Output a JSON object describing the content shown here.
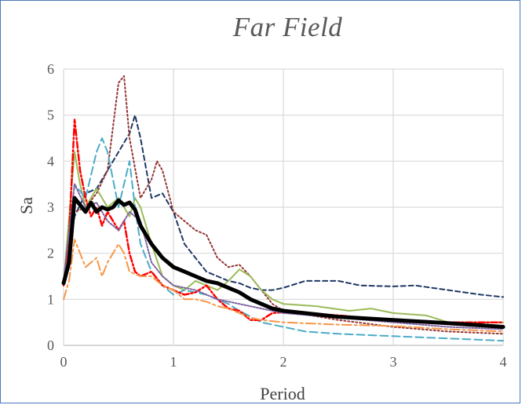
{
  "chart_data": {
    "type": "line",
    "title": "Far Field",
    "xlabel": "Period",
    "ylabel": "Sa",
    "xlim": [
      0,
      4
    ],
    "ylim": [
      0,
      6
    ],
    "xticks": [
      "0",
      "1",
      "2",
      "3",
      "4"
    ],
    "yticks": [
      "0",
      "1",
      "2",
      "3",
      "4",
      "5",
      "6"
    ],
    "grid": true,
    "legend": "none",
    "series": [
      {
        "color": "#000000",
        "dash": "solid",
        "width": 5,
        "points": [
          [
            0,
            1.35
          ],
          [
            0.05,
            1.8
          ],
          [
            0.1,
            3.2
          ],
          [
            0.15,
            3.05
          ],
          [
            0.2,
            2.9
          ],
          [
            0.25,
            3.1
          ],
          [
            0.3,
            2.9
          ],
          [
            0.35,
            3.0
          ],
          [
            0.4,
            2.95
          ],
          [
            0.45,
            3.0
          ],
          [
            0.5,
            3.15
          ],
          [
            0.55,
            3.05
          ],
          [
            0.6,
            3.1
          ],
          [
            0.65,
            2.95
          ],
          [
            0.7,
            2.6
          ],
          [
            0.8,
            2.2
          ],
          [
            0.9,
            1.9
          ],
          [
            1.0,
            1.7
          ],
          [
            1.1,
            1.6
          ],
          [
            1.2,
            1.5
          ],
          [
            1.3,
            1.4
          ],
          [
            1.4,
            1.35
          ],
          [
            1.5,
            1.25
          ],
          [
            1.6,
            1.15
          ],
          [
            1.7,
            1.0
          ],
          [
            1.8,
            0.9
          ],
          [
            1.9,
            0.8
          ],
          [
            2.0,
            0.75
          ],
          [
            2.5,
            0.62
          ],
          [
            3.0,
            0.55
          ],
          [
            3.5,
            0.48
          ],
          [
            4.0,
            0.4
          ]
        ]
      },
      {
        "color": "#1f3864",
        "dash": "6,4",
        "width": 2,
        "points": [
          [
            0,
            1.4
          ],
          [
            0.1,
            2.8
          ],
          [
            0.2,
            3.3
          ],
          [
            0.3,
            3.4
          ],
          [
            0.4,
            3.8
          ],
          [
            0.5,
            4.2
          ],
          [
            0.6,
            4.6
          ],
          [
            0.65,
            5.0
          ],
          [
            0.7,
            4.5
          ],
          [
            0.8,
            3.2
          ],
          [
            0.9,
            3.3
          ],
          [
            1.0,
            2.9
          ],
          [
            1.1,
            2.2
          ],
          [
            1.2,
            1.9
          ],
          [
            1.3,
            1.6
          ],
          [
            1.4,
            1.5
          ],
          [
            1.5,
            1.4
          ],
          [
            1.6,
            1.35
          ],
          [
            1.7,
            1.25
          ],
          [
            1.8,
            1.2
          ],
          [
            1.9,
            1.2
          ],
          [
            2.0,
            1.25
          ],
          [
            2.2,
            1.4
          ],
          [
            2.5,
            1.4
          ],
          [
            2.7,
            1.3
          ],
          [
            3.0,
            1.28
          ],
          [
            3.2,
            1.3
          ],
          [
            3.5,
            1.2
          ],
          [
            3.8,
            1.1
          ],
          [
            4.0,
            1.05
          ]
        ]
      },
      {
        "color": "#943634",
        "dash": "2,3",
        "width": 2,
        "points": [
          [
            0,
            1.35
          ],
          [
            0.1,
            2.9
          ],
          [
            0.2,
            3.0
          ],
          [
            0.3,
            3.3
          ],
          [
            0.4,
            3.8
          ],
          [
            0.5,
            5.7
          ],
          [
            0.55,
            5.85
          ],
          [
            0.6,
            4.5
          ],
          [
            0.7,
            3.2
          ],
          [
            0.8,
            3.6
          ],
          [
            0.85,
            4.0
          ],
          [
            0.9,
            3.8
          ],
          [
            1.0,
            2.9
          ],
          [
            1.1,
            2.7
          ],
          [
            1.2,
            2.5
          ],
          [
            1.3,
            2.4
          ],
          [
            1.4,
            1.9
          ],
          [
            1.5,
            1.7
          ],
          [
            1.6,
            1.75
          ],
          [
            1.7,
            1.5
          ],
          [
            1.8,
            1.2
          ],
          [
            1.9,
            0.9
          ],
          [
            2.0,
            0.75
          ],
          [
            2.5,
            0.55
          ],
          [
            3.0,
            0.4
          ],
          [
            3.5,
            0.3
          ],
          [
            4.0,
            0.25
          ]
        ]
      },
      {
        "color": "#9bbb59",
        "dash": "solid",
        "width": 2,
        "points": [
          [
            0,
            1.35
          ],
          [
            0.1,
            4.2
          ],
          [
            0.15,
            3.5
          ],
          [
            0.2,
            3.0
          ],
          [
            0.3,
            3.4
          ],
          [
            0.4,
            3.0
          ],
          [
            0.5,
            3.2
          ],
          [
            0.6,
            2.8
          ],
          [
            0.65,
            3.2
          ],
          [
            0.7,
            3.0
          ],
          [
            0.8,
            2.2
          ],
          [
            0.9,
            1.5
          ],
          [
            1.0,
            1.3
          ],
          [
            1.1,
            1.2
          ],
          [
            1.2,
            1.4
          ],
          [
            1.3,
            1.3
          ],
          [
            1.4,
            1.2
          ],
          [
            1.5,
            1.4
          ],
          [
            1.6,
            1.65
          ],
          [
            1.7,
            1.5
          ],
          [
            1.8,
            1.2
          ],
          [
            1.9,
            1.0
          ],
          [
            2.0,
            0.9
          ],
          [
            2.3,
            0.85
          ],
          [
            2.6,
            0.75
          ],
          [
            2.8,
            0.8
          ],
          [
            3.0,
            0.7
          ],
          [
            3.3,
            0.65
          ],
          [
            3.5,
            0.5
          ],
          [
            4.0,
            0.5
          ]
        ]
      },
      {
        "color": "#4bacc6",
        "dash": "10,5",
        "width": 2,
        "points": [
          [
            0,
            1.35
          ],
          [
            0.1,
            3.5
          ],
          [
            0.2,
            3.2
          ],
          [
            0.3,
            4.2
          ],
          [
            0.35,
            4.5
          ],
          [
            0.4,
            4.2
          ],
          [
            0.5,
            3.0
          ],
          [
            0.6,
            4.0
          ],
          [
            0.65,
            3.0
          ],
          [
            0.7,
            2.2
          ],
          [
            0.8,
            1.6
          ],
          [
            0.9,
            1.3
          ],
          [
            1.0,
            1.1
          ],
          [
            1.1,
            1.2
          ],
          [
            1.3,
            1.1
          ],
          [
            1.5,
            0.9
          ],
          [
            1.6,
            0.75
          ],
          [
            1.8,
            0.5
          ],
          [
            2.0,
            0.4
          ],
          [
            2.2,
            0.3
          ],
          [
            2.5,
            0.25
          ],
          [
            3.0,
            0.2
          ],
          [
            3.5,
            0.15
          ],
          [
            4.0,
            0.1
          ]
        ]
      },
      {
        "color": "#ff0000",
        "dash": "8,3,2,3",
        "width": 2.5,
        "points": [
          [
            0,
            1.3
          ],
          [
            0.05,
            2.4
          ],
          [
            0.1,
            4.9
          ],
          [
            0.15,
            3.8
          ],
          [
            0.2,
            3.2
          ],
          [
            0.25,
            2.8
          ],
          [
            0.3,
            3.0
          ],
          [
            0.35,
            2.6
          ],
          [
            0.4,
            2.9
          ],
          [
            0.5,
            2.5
          ],
          [
            0.55,
            2.7
          ],
          [
            0.6,
            2.0
          ],
          [
            0.65,
            1.6
          ],
          [
            0.7,
            1.5
          ],
          [
            0.8,
            1.6
          ],
          [
            0.9,
            1.3
          ],
          [
            1.0,
            1.2
          ],
          [
            1.1,
            1.1
          ],
          [
            1.2,
            1.15
          ],
          [
            1.3,
            1.3
          ],
          [
            1.4,
            1.0
          ],
          [
            1.5,
            0.8
          ],
          [
            1.6,
            0.75
          ],
          [
            1.7,
            0.55
          ],
          [
            1.8,
            0.55
          ],
          [
            1.9,
            0.7
          ],
          [
            2.0,
            0.72
          ],
          [
            2.5,
            0.65
          ],
          [
            3.0,
            0.55
          ],
          [
            3.5,
            0.5
          ],
          [
            4.0,
            0.5
          ]
        ]
      },
      {
        "color": "#f79646",
        "dash": "12,4,3,4",
        "width": 2,
        "points": [
          [
            0,
            1.0
          ],
          [
            0.05,
            1.4
          ],
          [
            0.1,
            2.3
          ],
          [
            0.15,
            2.0
          ],
          [
            0.2,
            1.7
          ],
          [
            0.3,
            1.9
          ],
          [
            0.35,
            1.5
          ],
          [
            0.4,
            1.8
          ],
          [
            0.5,
            2.2
          ],
          [
            0.55,
            2.0
          ],
          [
            0.6,
            1.6
          ],
          [
            0.7,
            1.5
          ],
          [
            0.8,
            1.5
          ],
          [
            0.9,
            1.3
          ],
          [
            1.0,
            1.2
          ],
          [
            1.1,
            1.0
          ],
          [
            1.2,
            1.0
          ],
          [
            1.3,
            0.95
          ],
          [
            1.4,
            0.85
          ],
          [
            1.5,
            0.8
          ],
          [
            1.6,
            0.7
          ],
          [
            1.7,
            0.6
          ],
          [
            1.8,
            0.55
          ],
          [
            2.0,
            0.5
          ],
          [
            2.5,
            0.45
          ],
          [
            3.0,
            0.42
          ],
          [
            3.5,
            0.35
          ],
          [
            4.0,
            0.3
          ]
        ]
      },
      {
        "color": "#8064a2",
        "dash": "2,2",
        "width": 2,
        "points": [
          [
            0,
            1.4
          ],
          [
            0.1,
            3.5
          ],
          [
            0.2,
            3.0
          ],
          [
            0.3,
            3.1
          ],
          [
            0.4,
            2.7
          ],
          [
            0.5,
            2.5
          ],
          [
            0.6,
            2.9
          ],
          [
            0.7,
            2.7
          ],
          [
            0.8,
            1.8
          ],
          [
            0.9,
            1.5
          ],
          [
            1.0,
            1.3
          ],
          [
            1.2,
            1.2
          ],
          [
            1.4,
            1.0
          ],
          [
            1.6,
            0.9
          ],
          [
            1.8,
            0.8
          ],
          [
            2.0,
            0.7
          ],
          [
            2.5,
            0.6
          ],
          [
            3.0,
            0.5
          ],
          [
            3.5,
            0.4
          ],
          [
            4.0,
            0.35
          ]
        ]
      }
    ]
  }
}
